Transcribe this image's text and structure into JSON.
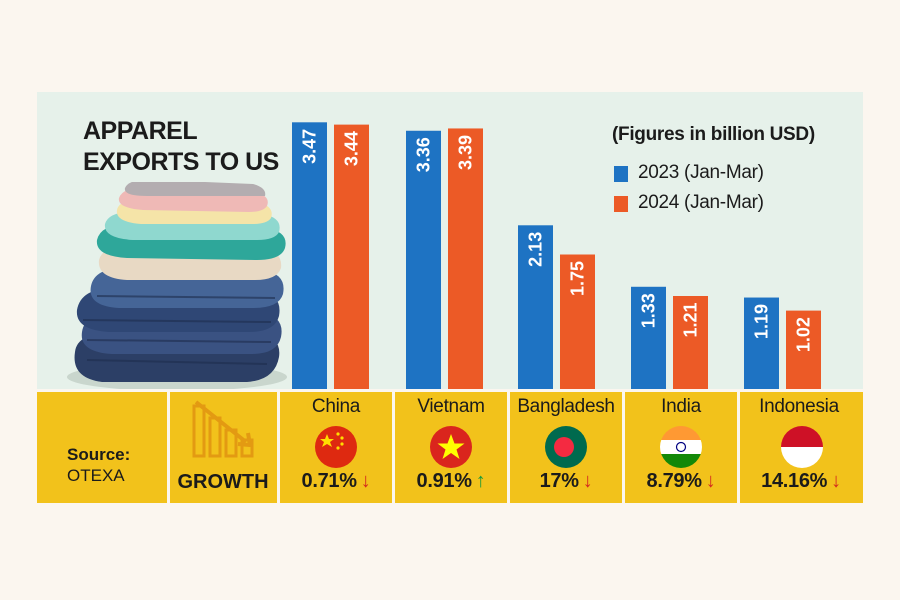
{
  "title": {
    "line1": "APPAREL",
    "line2": "EXPORTS TO US"
  },
  "note": "(Figures in billion USD)",
  "colors": {
    "series2023": "#1e73c3",
    "series2024": "#ec5a26",
    "background": "#e6f1ea",
    "band": "#f2c21b",
    "up": "#1a9a3a",
    "down": "#d42a1e"
  },
  "chart_data": {
    "type": "bar",
    "title": "APPAREL EXPORTS TO US",
    "ylabel": "(Figures in billion USD)",
    "categories": [
      "China",
      "Vietnam",
      "Bangladesh",
      "India",
      "Indonesia"
    ],
    "series": [
      {
        "name": "2023 (Jan-Mar)",
        "values": [
          3.47,
          3.36,
          2.13,
          1.33,
          1.19
        ],
        "labels": [
          "3.47",
          "3.36",
          "2.13",
          "1.33",
          "1.19"
        ]
      },
      {
        "name": "2024 (Jan-Mar)",
        "values": [
          3.44,
          3.39,
          1.75,
          1.21,
          1.02
        ],
        "labels": [
          "3.44",
          "3.39",
          "1.75",
          "1.21",
          "1.02"
        ]
      }
    ],
    "ylim": [
      0,
      3.5
    ],
    "legend": "top-right",
    "growth": [
      {
        "country": "China",
        "value": "0.71%",
        "direction": "down"
      },
      {
        "country": "Vietnam",
        "value": "0.91%",
        "direction": "up"
      },
      {
        "country": "Bangladesh",
        "value": "17%",
        "direction": "down"
      },
      {
        "country": "India",
        "value": "8.79%",
        "direction": "down"
      },
      {
        "country": "Indonesia",
        "value": "14.16%",
        "direction": "down"
      }
    ]
  },
  "legend": [
    {
      "label": "2023 (Jan-Mar)"
    },
    {
      "label": "2024 (Jan-Mar)"
    }
  ],
  "source": {
    "label": "Source:",
    "value": "OTEXA"
  },
  "growth_label": "GROWTH",
  "icons": {
    "clothes": "folded-clothes-stack-illustration",
    "growth": "declining-bar-chart-icon"
  }
}
